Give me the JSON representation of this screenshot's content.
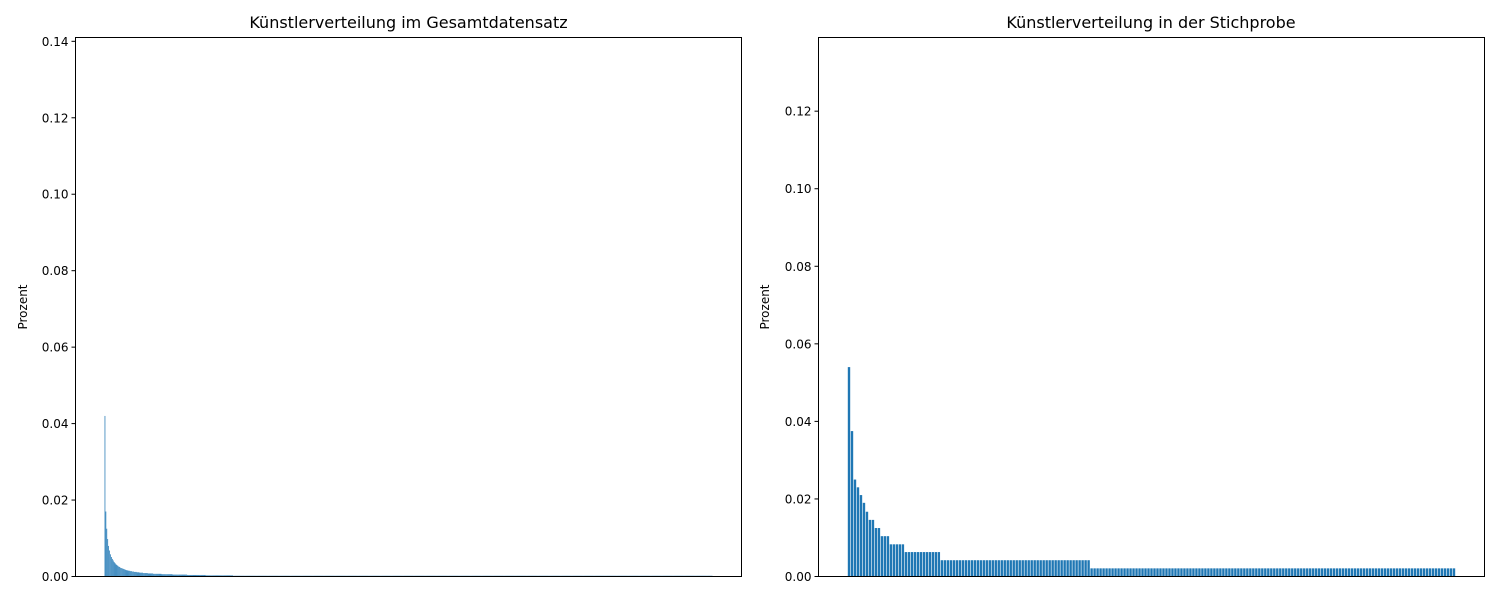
{
  "chart_data": [
    {
      "type": "bar",
      "title": "Künstlerverteilung im Gesamtdatensatz",
      "xlabel": "",
      "ylabel": "Prozent",
      "ylim": [
        0,
        0.141
      ],
      "yticks": [
        0.0,
        0.02,
        0.04,
        0.06,
        0.08,
        0.1,
        0.12,
        0.14
      ],
      "ytick_labels": [
        "0.00",
        "0.02",
        "0.04",
        "0.06",
        "0.08",
        "0.10",
        "0.12",
        "0.14"
      ],
      "x_ticks_visible": false,
      "bar_color": "#1f77b4",
      "values": [
        0.042,
        0.017,
        0.0125,
        0.0098,
        0.008,
        0.0068,
        0.0058,
        0.0051,
        0.0046,
        0.0042,
        0.0038,
        0.0035,
        0.0032,
        0.003,
        0.0028,
        0.0026,
        0.0025,
        0.0023,
        0.0022,
        0.0021,
        0.002,
        0.0019,
        0.0018,
        0.0017,
        0.0016,
        0.0016,
        0.0015,
        0.0015,
        0.0014,
        0.0014,
        0.0013,
        0.0013,
        0.0012,
        0.0012,
        0.0012,
        0.0011,
        0.0011,
        0.0011,
        0.001,
        0.001,
        0.001,
        0.001,
        0.0009,
        0.0009,
        0.0009,
        0.0009,
        0.0009,
        0.0008,
        0.0008,
        0.0008,
        0.0008,
        0.0008,
        0.0008,
        0.0007,
        0.0007,
        0.0007,
        0.0007,
        0.0007,
        0.0007,
        0.0007,
        0.0007,
        0.0007,
        0.0006,
        0.0006,
        0.0006,
        0.0006,
        0.0006,
        0.0006,
        0.0006,
        0.0006,
        0.0006,
        0.0006,
        0.0006,
        0.0006,
        0.0005,
        0.0005,
        0.0005,
        0.0005,
        0.0005,
        0.0005,
        0.0005,
        0.0005,
        0.0005,
        0.0005,
        0.0005,
        0.0005,
        0.0005,
        0.0005,
        0.0005,
        0.0005,
        0.0004,
        0.0004,
        0.0004,
        0.0004,
        0.0004,
        0.0004,
        0.0004,
        0.0004,
        0.0004,
        0.0004,
        0.0004,
        0.0004,
        0.0004,
        0.0004,
        0.0004,
        0.0004,
        0.0004,
        0.0004,
        0.0004,
        0.0004,
        0.0003,
        0.0003,
        0.0003,
        0.0003,
        0.0003,
        0.0003,
        0.0003,
        0.0003,
        0.0003,
        0.0003,
        0.0003,
        0.0003,
        0.0003,
        0.0003,
        0.0003,
        0.0003,
        0.0003,
        0.0003,
        0.0003,
        0.0003,
        0.0003,
        0.0003,
        0.0003,
        0.0003,
        0.0003,
        0.0003,
        0.0003,
        0.0003,
        0.0003,
        0.0003,
        0.0002,
        0.0002,
        0.0002,
        0.0002,
        0.0002,
        0.0002,
        0.0002,
        0.0002,
        0.0002,
        0.0002,
        0.0002,
        0.0002,
        0.0002,
        0.0002,
        0.0002,
        0.0002,
        0.0002,
        0.0002,
        0.0002,
        0.0002,
        0.0002,
        0.0002,
        0.0002,
        0.0002,
        0.0002,
        0.0002,
        0.0002,
        0.0002,
        0.0002,
        0.0002,
        0.0002,
        0.0002,
        0.0002,
        0.0002,
        0.0002,
        0.0002,
        0.0002,
        0.0002,
        0.0002,
        0.0002,
        0.0002,
        0.0002,
        0.0002,
        0.0002,
        0.0002,
        0.0002,
        0.0002,
        0.0002,
        0.0002,
        0.0002,
        0.0002,
        0.0002,
        0.0002,
        0.0002,
        0.0002,
        0.0002,
        0.0002,
        0.0002,
        0.0002,
        0.0002,
        0.0002,
        0.0002,
        0.0002,
        0.0002,
        0.0002,
        0.0002,
        0.0002,
        0.0002,
        0.0002,
        0.0002,
        0.0002,
        0.0002,
        0.0002,
        0.0002,
        0.0002,
        0.0002,
        0.0002,
        0.0002,
        0.0002,
        0.0002,
        0.0002,
        0.0002,
        0.0002,
        0.0002,
        0.0002,
        0.0002,
        0.0002,
        0.0002,
        0.0002,
        0.0002,
        0.0002,
        0.0002,
        0.0002,
        0.0002,
        0.0002,
        0.0002,
        0.0002,
        0.0002,
        0.0002,
        0.0002,
        0.0002,
        0.0002,
        0.0002,
        0.0002,
        0.0002,
        0.0002,
        0.0002,
        0.0002,
        0.0002,
        0.0002,
        0.0002,
        0.0002,
        0.0002,
        0.0002,
        0.0002,
        0.0002,
        0.0002,
        0.0002,
        0.0002,
        0.0002,
        0.0002,
        0.0002,
        0.0002,
        0.0002,
        0.0002,
        0.0002,
        0.0002,
        0.0002,
        0.0002,
        0.0002,
        0.0002,
        0.0002,
        0.0002,
        0.0002,
        0.0002,
        0.0002,
        0.0002,
        0.0002,
        0.0002,
        0.0002,
        0.0002,
        0.0002,
        0.0002,
        0.0002,
        0.0002,
        0.0002,
        0.0002,
        0.0002,
        0.0002,
        0.0002,
        0.0002,
        0.0002,
        0.0002,
        0.0002,
        0.0002,
        0.0002,
        0.0002,
        0.0002,
        0.0002,
        0.0002,
        0.0002,
        0.0002,
        0.0002,
        0.0002,
        0.0002,
        0.0002,
        0.0002,
        0.0002,
        0.0002,
        0.0002,
        0.0002,
        0.0002,
        0.0002,
        0.0002,
        0.0002,
        0.0002,
        0.0002,
        0.0002,
        0.0002,
        0.0002,
        0.0002,
        0.0002,
        0.0002,
        0.0002,
        0.0002,
        0.0002,
        0.0002,
        0.0002,
        0.0002,
        0.0002,
        0.0002,
        0.0002,
        0.0002,
        0.0002,
        0.0002,
        0.0002,
        0.0002,
        0.0002,
        0.0002,
        0.0002,
        0.0002,
        0.0002,
        0.0002,
        0.0002,
        0.0002,
        0.0002,
        0.0002,
        0.0002,
        0.0002,
        0.0002,
        0.0002,
        0.0002,
        0.0002,
        0.0002,
        0.0002,
        0.0002,
        0.0002,
        0.0002,
        0.0002,
        0.0002,
        0.0002,
        0.0002,
        0.0002,
        0.0002,
        0.0002,
        0.0002,
        0.0002,
        0.0002,
        0.0002,
        0.0002,
        0.0002,
        0.0002,
        0.0002,
        0.0002,
        0.0002,
        0.0002,
        0.0002,
        0.0002,
        0.0002,
        0.0002,
        0.0002,
        0.0002,
        0.0002,
        0.0002,
        0.0002,
        0.0002,
        0.0002,
        0.0002,
        0.0002,
        0.0002,
        0.0002,
        0.0002,
        0.0002,
        0.0002,
        0.0002,
        0.0002,
        0.0002,
        0.0002,
        0.0002,
        0.0002,
        0.0002,
        0.0002,
        0.0002,
        0.0002,
        0.0002,
        0.0002,
        0.0002,
        0.0002,
        0.0002,
        0.0002,
        0.0002,
        0.0002,
        0.0002,
        0.0002,
        0.0002,
        0.0002,
        0.0002,
        0.0002,
        0.0002,
        0.0002,
        0.0002,
        0.0002,
        0.0002,
        0.0002,
        0.0002,
        0.0002,
        0.0002,
        0.0002,
        0.0002,
        0.0002,
        0.0002,
        0.0002,
        0.0002,
        0.0002,
        0.0002,
        0.0002,
        0.0002,
        0.0002,
        0.0002,
        0.0002,
        0.0002,
        0.0002,
        0.0002,
        0.0002,
        0.0002,
        0.0002,
        0.0002,
        0.0002,
        0.0002,
        0.0002,
        0.0002,
        0.0002,
        0.0002,
        0.0002,
        0.0002,
        0.0002,
        0.0002,
        0.0002,
        0.0002,
        0.0002,
        0.0002,
        0.0002,
        0.0002,
        0.0002,
        0.0002,
        0.0002,
        0.0002,
        0.0002,
        0.0002,
        0.0002,
        0.0002,
        0.0002,
        0.0002,
        0.0002,
        0.0002,
        0.0002,
        0.0002,
        0.0002,
        0.0002,
        0.0002,
        0.0002,
        0.0002,
        0.0002,
        0.0002,
        0.0002,
        0.0002,
        0.0002,
        0.0002,
        0.0002,
        0.0002,
        0.0002,
        0.0002,
        0.0002,
        0.0002,
        0.0002,
        0.0002,
        0.0002,
        0.0002,
        0.0002,
        0.0002,
        0.0002,
        0.0002,
        0.0002,
        0.0002,
        0.0002,
        0.0002,
        0.0002,
        0.0002,
        0.0002,
        0.0002,
        0.0002,
        0.0002,
        0.0002,
        0.0002,
        0.0002,
        0.0002,
        0.0002,
        0.0002,
        0.0002,
        0.0002,
        0.0002,
        0.0002,
        0.0002,
        0.0002,
        0.0002,
        0.0002,
        0.0002,
        0.0002,
        0.0002,
        0.0002,
        0.0002,
        0.0002,
        0.0002,
        0.0002,
        0.0002,
        0.0002,
        0.0002,
        0.0002,
        0.0002,
        0.0002,
        0.0002,
        0.0002,
        0.0002,
        0.0002,
        0.0002,
        0.0002,
        0.0002,
        0.0002,
        0.0002,
        0.0002,
        0.0002,
        0.0002,
        0.0002,
        0.0002,
        0.0002,
        0.0002,
        0.0002,
        0.0002,
        0.0002,
        0.0002,
        0.0002,
        0.0002,
        0.0002,
        0.0002,
        0.0002,
        0.0002,
        0.0002,
        0.0002,
        0.0002,
        0.0002,
        0.0002,
        0.0002,
        0.0002,
        0.0002,
        0.0002,
        0.0002,
        0.0002,
        0.0002,
        0.0002,
        0.0002,
        0.0002,
        0.0002,
        0.0002,
        0.0002,
        0.0002,
        0.0002,
        0.0002,
        0.0002,
        0.0002,
        0.0002,
        0.0002,
        0.0002,
        0.0002,
        0.0002,
        0.0002,
        0.0002,
        0.0002,
        0.0002,
        0.0002,
        0.0002,
        0.0002,
        0.0002,
        0.0002,
        0.0002,
        0.0002,
        0.0002,
        0.0002,
        0.0002,
        0.0002,
        0.0002,
        0.0002,
        0.0002,
        0.0002,
        0.0002,
        0.0002,
        0.0002,
        0.0002,
        0.0002,
        0.0002,
        0.0002,
        0.0002,
        0.0002,
        0.0002,
        0.0002,
        0.0002,
        0.0002,
        0.0002,
        0.0002,
        0.0002,
        0.0002,
        0.0002,
        0.0002,
        0.0002,
        0.0002,
        0.0002,
        0.0002,
        0.0002,
        0.0002,
        0.0002,
        0.0002,
        0.0002,
        0.0002,
        0.0002,
        0.0002,
        0.0002,
        0.0002,
        0.0002,
        0.0002,
        0.0002,
        0.0002,
        0.0002,
        0.0002,
        0.0002,
        0.0002,
        0.0002,
        0.0002,
        0.0002,
        0.0002,
        0.0002,
        0.0002,
        0.0002,
        0.0002
      ]
    },
    {
      "type": "bar",
      "title": "Künstlerverteilung in der Stichprobe",
      "xlabel": "",
      "ylabel": "Prozent",
      "ylim": [
        0,
        0.139
      ],
      "yticks": [
        0.0,
        0.02,
        0.04,
        0.06,
        0.08,
        0.1,
        0.12
      ],
      "ytick_labels": [
        "0.00",
        "0.02",
        "0.04",
        "0.06",
        "0.08",
        "0.10",
        "0.12"
      ],
      "x_ticks_visible": false,
      "bar_color": "#1f77b4",
      "values": [
        0.054,
        0.0375,
        0.025,
        0.023,
        0.021,
        0.019,
        0.0167,
        0.0146,
        0.0146,
        0.0125,
        0.0125,
        0.0104,
        0.0104,
        0.0104,
        0.0083,
        0.0083,
        0.0083,
        0.0083,
        0.0083,
        0.0063,
        0.0063,
        0.0063,
        0.0063,
        0.0063,
        0.0063,
        0.0063,
        0.0063,
        0.0063,
        0.0063,
        0.0063,
        0.0063,
        0.0042,
        0.0042,
        0.0042,
        0.0042,
        0.0042,
        0.0042,
        0.0042,
        0.0042,
        0.0042,
        0.0042,
        0.0042,
        0.0042,
        0.0042,
        0.0042,
        0.0042,
        0.0042,
        0.0042,
        0.0042,
        0.0042,
        0.0042,
        0.0042,
        0.0042,
        0.0042,
        0.0042,
        0.0042,
        0.0042,
        0.0042,
        0.0042,
        0.0042,
        0.0042,
        0.0042,
        0.0042,
        0.0042,
        0.0042,
        0.0042,
        0.0042,
        0.0042,
        0.0042,
        0.0042,
        0.0042,
        0.0042,
        0.0042,
        0.0042,
        0.0042,
        0.0042,
        0.0042,
        0.0042,
        0.0042,
        0.0042,
        0.0042,
        0.0021,
        0.0021,
        0.0021,
        0.0021,
        0.0021,
        0.0021,
        0.0021,
        0.0021,
        0.0021,
        0.0021,
        0.0021,
        0.0021,
        0.0021,
        0.0021,
        0.0021,
        0.0021,
        0.0021,
        0.0021,
        0.0021,
        0.0021,
        0.0021,
        0.0021,
        0.0021,
        0.0021,
        0.0021,
        0.0021,
        0.0021,
        0.0021,
        0.0021,
        0.0021,
        0.0021,
        0.0021,
        0.0021,
        0.0021,
        0.0021,
        0.0021,
        0.0021,
        0.0021,
        0.0021,
        0.0021,
        0.0021,
        0.0021,
        0.0021,
        0.0021,
        0.0021,
        0.0021,
        0.0021,
        0.0021,
        0.0021,
        0.0021,
        0.0021,
        0.0021,
        0.0021,
        0.0021,
        0.0021,
        0.0021,
        0.0021,
        0.0021,
        0.0021,
        0.0021,
        0.0021,
        0.0021,
        0.0021,
        0.0021,
        0.0021,
        0.0021,
        0.0021,
        0.0021,
        0.0021,
        0.0021,
        0.0021,
        0.0021,
        0.0021,
        0.0021,
        0.0021,
        0.0021,
        0.0021,
        0.0021,
        0.0021,
        0.0021,
        0.0021,
        0.0021,
        0.0021,
        0.0021,
        0.0021,
        0.0021,
        0.0021,
        0.0021,
        0.0021,
        0.0021,
        0.0021,
        0.0021,
        0.0021,
        0.0021,
        0.0021,
        0.0021,
        0.0021,
        0.0021,
        0.0021,
        0.0021,
        0.0021,
        0.0021,
        0.0021,
        0.0021,
        0.0021,
        0.0021,
        0.0021,
        0.0021,
        0.0021,
        0.0021,
        0.0021,
        0.0021,
        0.0021,
        0.0021,
        0.0021,
        0.0021,
        0.0021,
        0.0021,
        0.0021,
        0.0021,
        0.0021,
        0.0021
      ]
    }
  ]
}
